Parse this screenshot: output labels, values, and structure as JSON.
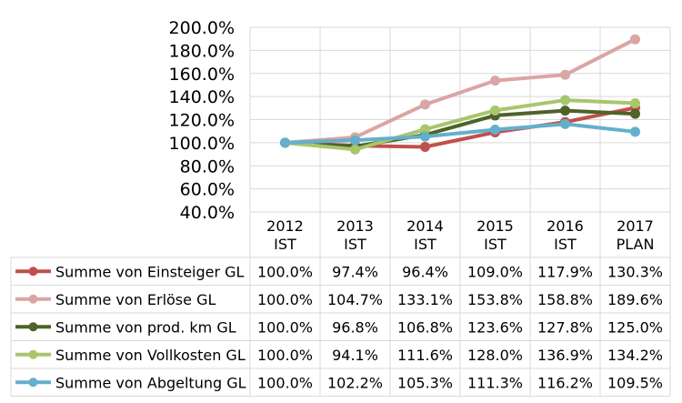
{
  "chart_data": {
    "type": "line",
    "categories": [
      {
        "year": "2012",
        "kind": "IST"
      },
      {
        "year": "2013",
        "kind": "IST"
      },
      {
        "year": "2014",
        "kind": "IST"
      },
      {
        "year": "2015",
        "kind": "IST"
      },
      {
        "year": "2016",
        "kind": "IST"
      },
      {
        "year": "2017",
        "kind": "PLAN"
      }
    ],
    "ylim": [
      40,
      200
    ],
    "yticks": [
      "200.0%",
      "180.0%",
      "160.0%",
      "140.0%",
      "120.0%",
      "100.0%",
      "80.0%",
      "60.0%",
      "40.0%"
    ],
    "ytick_values": [
      200,
      180,
      160,
      140,
      120,
      100,
      80,
      60,
      40
    ],
    "grid": true,
    "legend": "data-table",
    "series": [
      {
        "name": "Summe von Einsteiger GL",
        "color": "#c0504d",
        "values": [
          100.0,
          97.4,
          96.4,
          109.0,
          117.9,
          130.3
        ],
        "labels": [
          "100.0%",
          "97.4%",
          "96.4%",
          "109.0%",
          "117.9%",
          "130.3%"
        ]
      },
      {
        "name": "Summe von Erlöse GL",
        "color": "#dba5a4",
        "values": [
          100.0,
          104.7,
          133.1,
          153.8,
          158.8,
          189.6
        ],
        "labels": [
          "100.0%",
          "104.7%",
          "133.1%",
          "153.8%",
          "158.8%",
          "189.6%"
        ]
      },
      {
        "name": "Summe von prod. km GL",
        "color": "#4f6228",
        "values": [
          100.0,
          96.8,
          106.8,
          123.6,
          127.8,
          125.0
        ],
        "labels": [
          "100.0%",
          "96.8%",
          "106.8%",
          "123.6%",
          "127.8%",
          "125.0%"
        ]
      },
      {
        "name": "Summe von Vollkosten GL",
        "color": "#a8c66b",
        "values": [
          100.0,
          94.1,
          111.6,
          128.0,
          136.9,
          134.2
        ],
        "labels": [
          "100.0%",
          "94.1%",
          "111.6%",
          "128.0%",
          "136.9%",
          "134.2%"
        ]
      },
      {
        "name": "Summe von Abgeltung GL",
        "color": "#64afcb",
        "values": [
          100.0,
          102.2,
          105.3,
          111.3,
          116.2,
          109.5
        ],
        "labels": [
          "100.0%",
          "102.2%",
          "105.3%",
          "111.3%",
          "116.2%",
          "109.5%"
        ]
      }
    ]
  }
}
